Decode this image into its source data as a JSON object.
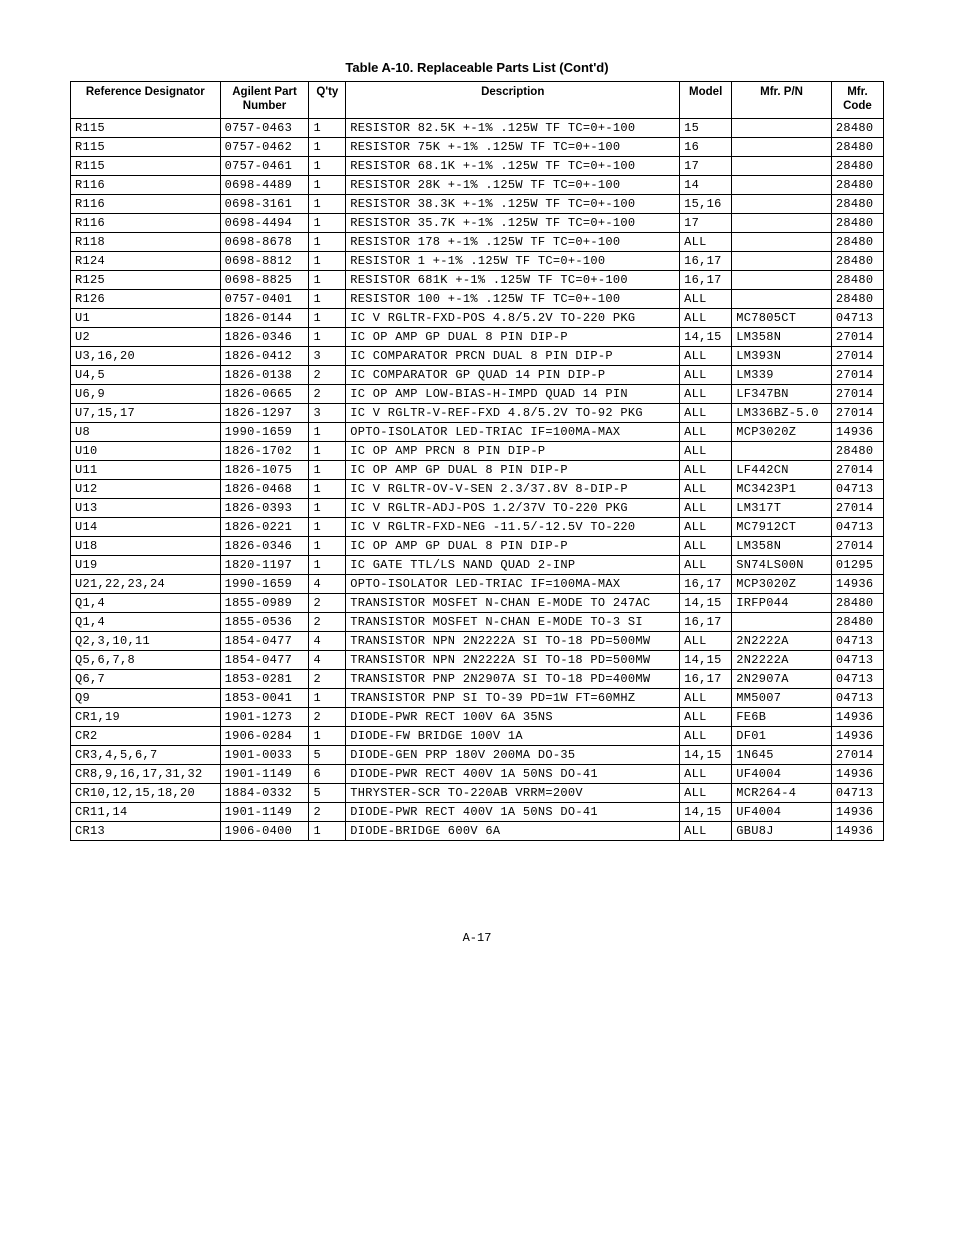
{
  "title": "Table A-10. Replaceable Parts List (Cont'd)",
  "page_number": "A-17",
  "columns": [
    "Reference Designator",
    "Agilent Part Number",
    "Q'ty",
    "Description",
    "Model",
    "Mfr. P/N",
    "Mfr. Code"
  ],
  "rows": [
    {
      "ref": "R115",
      "part": "0757-0463",
      "qty": "1",
      "desc": "RESISTOR 82.5K +-1% .125W TF TC=0+-100",
      "model": "15",
      "pn": "",
      "code": "28480"
    },
    {
      "ref": "R115",
      "part": "0757-0462",
      "qty": "1",
      "desc": "RESISTOR 75K +-1% .125W TF TC=0+-100",
      "model": "16",
      "pn": "",
      "code": "28480"
    },
    {
      "ref": "R115",
      "part": "0757-0461",
      "qty": "1",
      "desc": "RESISTOR 68.1K +-1% .125W TF TC=0+-100",
      "model": "17",
      "pn": "",
      "code": "28480"
    },
    {
      "ref": "R116",
      "part": "0698-4489",
      "qty": "1",
      "desc": "RESISTOR 28K +-1% .125W TF TC=0+-100",
      "model": "14",
      "pn": "",
      "code": "28480"
    },
    {
      "ref": "R116",
      "part": "0698-3161",
      "qty": "1",
      "desc": "RESISTOR 38.3K +-1% .125W TF TC=0+-100",
      "model": "15,16",
      "pn": "",
      "code": "28480"
    },
    {
      "ref": "R116",
      "part": "0698-4494",
      "qty": "1",
      "desc": "RESISTOR 35.7K +-1% .125W TF TC=0+-100",
      "model": "17",
      "pn": "",
      "code": "28480"
    },
    {
      "ref": "R118",
      "part": "0698-8678",
      "qty": "1",
      "desc": "RESISTOR 178 +-1% .125W TF TC=0+-100",
      "model": "ALL",
      "pn": "",
      "code": "28480"
    },
    {
      "ref": "R124",
      "part": "0698-8812",
      "qty": "1",
      "desc": "RESISTOR 1 +-1% .125W TF TC=0+-100",
      "model": "16,17",
      "pn": "",
      "code": "28480"
    },
    {
      "ref": "R125",
      "part": "0698-8825",
      "qty": "1",
      "desc": "RESISTOR 681K +-1% .125W TF TC=0+-100",
      "model": "16,17",
      "pn": "",
      "code": "28480"
    },
    {
      "ref": "R126",
      "part": "0757-0401",
      "qty": "1",
      "desc": "RESISTOR 100 +-1% .125W TF TC=0+-100",
      "model": "ALL",
      "pn": "",
      "code": "28480"
    },
    {
      "ref": "U1",
      "part": "1826-0144",
      "qty": "1",
      "desc": "IC V RGLTR-FXD-POS 4.8/5.2V TO-220 PKG",
      "model": "ALL",
      "pn": "MC7805CT",
      "code": "04713"
    },
    {
      "ref": "U2",
      "part": "1826-0346",
      "qty": "1",
      "desc": "IC OP AMP GP DUAL 8 PIN DIP-P",
      "model": "14,15",
      "pn": "LM358N",
      "code": "27014"
    },
    {
      "ref": "U3,16,20",
      "part": "1826-0412",
      "qty": "3",
      "desc": "IC COMPARATOR PRCN DUAL 8 PIN DIP-P",
      "model": "ALL",
      "pn": "LM393N",
      "code": "27014"
    },
    {
      "ref": "U4,5",
      "part": "1826-0138",
      "qty": "2",
      "desc": "IC COMPARATOR GP QUAD 14 PIN DIP-P",
      "model": "ALL",
      "pn": "LM339",
      "code": "27014"
    },
    {
      "ref": "U6,9",
      "part": "1826-0665",
      "qty": "2",
      "desc": "IC OP AMP LOW-BIAS-H-IMPD QUAD 14 PIN",
      "model": "ALL",
      "pn": "LF347BN",
      "code": "27014"
    },
    {
      "ref": "U7,15,17",
      "part": "1826-1297",
      "qty": "3",
      "desc": "IC V RGLTR-V-REF-FXD 4.8/5.2V TO-92 PKG",
      "model": "ALL",
      "pn": "LM336BZ-5.0",
      "code": "27014"
    },
    {
      "ref": "U8",
      "part": "1990-1659",
      "qty": "1",
      "desc": "OPTO-ISOLATOR LED-TRIAC IF=100MA-MAX",
      "model": "ALL",
      "pn": "MCP3020Z",
      "code": "14936"
    },
    {
      "ref": "U10",
      "part": "1826-1702",
      "qty": "1",
      "desc": "IC OP AMP PRCN 8 PIN DIP-P",
      "model": "ALL",
      "pn": "",
      "code": "28480"
    },
    {
      "ref": "U11",
      "part": "1826-1075",
      "qty": "1",
      "desc": "IC OP AMP GP DUAL 8 PIN DIP-P",
      "model": "ALL",
      "pn": "LF442CN",
      "code": "27014"
    },
    {
      "ref": "U12",
      "part": "1826-0468",
      "qty": "1",
      "desc": "IC V RGLTR-OV-V-SEN 2.3/37.8V 8-DIP-P",
      "model": "ALL",
      "pn": "MC3423P1",
      "code": "04713"
    },
    {
      "ref": "U13",
      "part": "1826-0393",
      "qty": "1",
      "desc": "IC V RGLTR-ADJ-POS 1.2/37V TO-220 PKG",
      "model": "ALL",
      "pn": "LM317T",
      "code": "27014"
    },
    {
      "ref": "U14",
      "part": "1826-0221",
      "qty": "1",
      "desc": "IC V RGLTR-FXD-NEG -11.5/-12.5V TO-220",
      "model": "ALL",
      "pn": "MC7912CT",
      "code": "04713"
    },
    {
      "ref": "U18",
      "part": "1826-0346",
      "qty": "1",
      "desc": "IC OP AMP GP DUAL 8 PIN DIP-P",
      "model": "ALL",
      "pn": "LM358N",
      "code": "27014"
    },
    {
      "ref": "U19",
      "part": "1820-1197",
      "qty": "1",
      "desc": "IC GATE TTL/LS NAND QUAD 2-INP",
      "model": "ALL",
      "pn": "SN74LS00N",
      "code": "01295"
    },
    {
      "ref": "U21,22,23,24",
      "part": "1990-1659",
      "qty": "4",
      "desc": "OPTO-ISOLATOR LED-TRIAC IF=100MA-MAX",
      "model": "16,17",
      "pn": "MCP3020Z",
      "code": "14936"
    },
    {
      "ref": "Q1,4",
      "part": "1855-0989",
      "qty": "2",
      "desc": "TRANSISTOR MOSFET N-CHAN E-MODE TO 247AC",
      "model": "14,15",
      "pn": "IRFP044",
      "code": "28480"
    },
    {
      "ref": "Q1,4",
      "part": "1855-0536",
      "qty": "2",
      "desc": "TRANSISTOR MOSFET N-CHAN E-MODE TO-3 SI",
      "model": "16,17",
      "pn": "",
      "code": "28480"
    },
    {
      "ref": "Q2,3,10,11",
      "part": "1854-0477",
      "qty": "4",
      "desc": "TRANSISTOR NPN 2N2222A SI TO-18 PD=500MW",
      "model": "ALL",
      "pn": "2N2222A",
      "code": "04713"
    },
    {
      "ref": "Q5,6,7,8",
      "part": "1854-0477",
      "qty": "4",
      "desc": "TRANSISTOR NPN 2N2222A SI TO-18 PD=500MW",
      "model": "14,15",
      "pn": "2N2222A",
      "code": "04713"
    },
    {
      "ref": "Q6,7",
      "part": "1853-0281",
      "qty": "2",
      "desc": "TRANSISTOR PNP 2N2907A SI TO-18 PD=400MW",
      "model": "16,17",
      "pn": "2N2907A",
      "code": "04713"
    },
    {
      "ref": "Q9",
      "part": "1853-0041",
      "qty": "1",
      "desc": "TRANSISTOR PNP SI TO-39 PD=1W FT=60MHZ",
      "model": "ALL",
      "pn": "MM5007",
      "code": "04713"
    },
    {
      "ref": "CR1,19",
      "part": "1901-1273",
      "qty": "2",
      "desc": "DIODE-PWR RECT 100V 6A 35NS",
      "model": "ALL",
      "pn": "FE6B",
      "code": "14936"
    },
    {
      "ref": "CR2",
      "part": "1906-0284",
      "qty": "1",
      "desc": "DIODE-FW BRIDGE 100V 1A",
      "model": "ALL",
      "pn": "DF01",
      "code": "14936"
    },
    {
      "ref": "CR3,4,5,6,7",
      "part": "1901-0033",
      "qty": "5",
      "desc": "DIODE-GEN PRP 180V 200MA DO-35",
      "model": "14,15",
      "pn": "1N645",
      "code": "27014"
    },
    {
      "ref": "CR8,9,16,17,31,32",
      "part": "1901-1149",
      "qty": "6",
      "desc": "DIODE-PWR RECT 400V 1A 50NS DO-41",
      "model": "ALL",
      "pn": "UF4004",
      "code": "14936"
    },
    {
      "ref": "CR10,12,15,18,20",
      "part": "1884-0332",
      "qty": "5",
      "desc": "THRYSTER-SCR TO-220AB VRRM=200V",
      "model": "ALL",
      "pn": "MCR264-4",
      "code": "04713"
    },
    {
      "ref": "CR11,14",
      "part": "1901-1149",
      "qty": "2",
      "desc": "DIODE-PWR RECT 400V 1A 50NS DO-41",
      "model": "14,15",
      "pn": "UF4004",
      "code": "14936"
    },
    {
      "ref": "CR13",
      "part": "1906-0400",
      "qty": "1",
      "desc": "DIODE-BRIDGE 600V 6A",
      "model": "ALL",
      "pn": "GBU8J",
      "code": "14936"
    }
  ]
}
